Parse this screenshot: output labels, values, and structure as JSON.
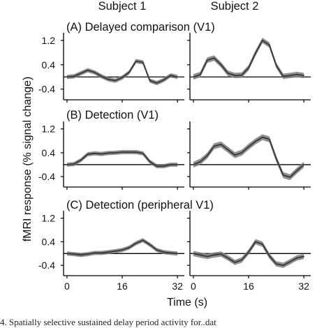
{
  "column_titles": [
    "Subject 1",
    "Subject 2"
  ],
  "ylabel": "fMRI response (% signal change)",
  "xlabel": "Time (s)",
  "caption_fragment": "4. Spatially selective sustained delay period activity for..dat",
  "colors": {
    "band": "#7f7f7f",
    "line": "#3c3c3c",
    "axis": "#000000"
  },
  "chart_data": [
    {
      "type": "line",
      "title": "(A) Delayed comparison (V1)",
      "x": [
        0,
        2,
        4,
        6,
        8,
        10,
        12,
        14,
        16,
        18,
        20,
        22,
        24,
        26,
        28,
        30,
        32
      ],
      "xlim": [
        -1,
        34
      ],
      "ylim": [
        -0.75,
        1.45
      ],
      "yticks": [
        -0.4,
        0.4,
        1.2
      ],
      "xticks": [
        0,
        16,
        32
      ],
      "show_xticklabels": false,
      "baseline": 0,
      "series": [
        {
          "subject_index": 0,
          "error_band": 0.07,
          "values": [
            0,
            0.02,
            0.12,
            0.22,
            0.15,
            0.02,
            -0.08,
            -0.12,
            -0.02,
            0.15,
            0.52,
            0.48,
            -0.12,
            -0.2,
            -0.1,
            0.05,
            0
          ]
        },
        {
          "subject_index": 1,
          "error_band": 0.09,
          "values": [
            0,
            0.08,
            0.55,
            0.62,
            0.4,
            0.12,
            0.05,
            0.06,
            0.3,
            0.78,
            1.2,
            1.05,
            0.38,
            0.02,
            0.05,
            0.08,
            0.05
          ]
        }
      ]
    },
    {
      "type": "line",
      "title": "(B) Detection (V1)",
      "x": [
        0,
        2,
        4,
        6,
        8,
        10,
        12,
        14,
        16,
        18,
        20,
        22,
        24,
        26,
        28,
        30,
        32
      ],
      "xlim": [
        -1,
        34
      ],
      "ylim": [
        -0.75,
        1.45
      ],
      "yticks": [
        -0.4,
        0.4,
        1.2
      ],
      "xticks": [
        0,
        16,
        32
      ],
      "show_xticklabels": false,
      "baseline": 0,
      "series": [
        {
          "subject_index": 0,
          "error_band": 0.07,
          "values": [
            0,
            0.02,
            0.15,
            0.35,
            0.38,
            0.36,
            0.39,
            0.4,
            0.42,
            0.42,
            0.42,
            0.38,
            0.1,
            -0.05,
            -0.05,
            0,
            0
          ]
        },
        {
          "subject_index": 1,
          "error_band": 0.1,
          "values": [
            0,
            0.1,
            0.3,
            0.62,
            0.68,
            0.5,
            0.32,
            0.4,
            0.6,
            0.78,
            0.92,
            0.85,
            0.2,
            -0.35,
            -0.42,
            -0.2,
            0
          ]
        }
      ]
    },
    {
      "type": "line",
      "title": "(C) Detection (peripheral V1)",
      "x": [
        0,
        2,
        4,
        6,
        8,
        10,
        12,
        14,
        16,
        18,
        20,
        22,
        24,
        26,
        28,
        30,
        32
      ],
      "xlim": [
        -1,
        34
      ],
      "ylim": [
        -0.75,
        1.45
      ],
      "yticks": [
        -0.4,
        0.4,
        1.2
      ],
      "xticks": [
        0,
        16,
        32
      ],
      "show_xticklabels": true,
      "baseline": 0,
      "series": [
        {
          "subject_index": 0,
          "error_band": 0.07,
          "values": [
            0,
            -0.02,
            -0.05,
            -0.02,
            0.02,
            0.02,
            0.05,
            0.08,
            0.12,
            0.2,
            0.35,
            0.45,
            0.3,
            0.12,
            0.05,
            0.02,
            0
          ]
        },
        {
          "subject_index": 1,
          "error_band": 0.09,
          "values": [
            0,
            -0.05,
            -0.1,
            -0.05,
            -0.02,
            -0.15,
            -0.3,
            -0.22,
            0.05,
            0.4,
            0.32,
            -0.08,
            -0.35,
            -0.4,
            -0.28,
            -0.15,
            -0.1
          ]
        }
      ]
    }
  ]
}
